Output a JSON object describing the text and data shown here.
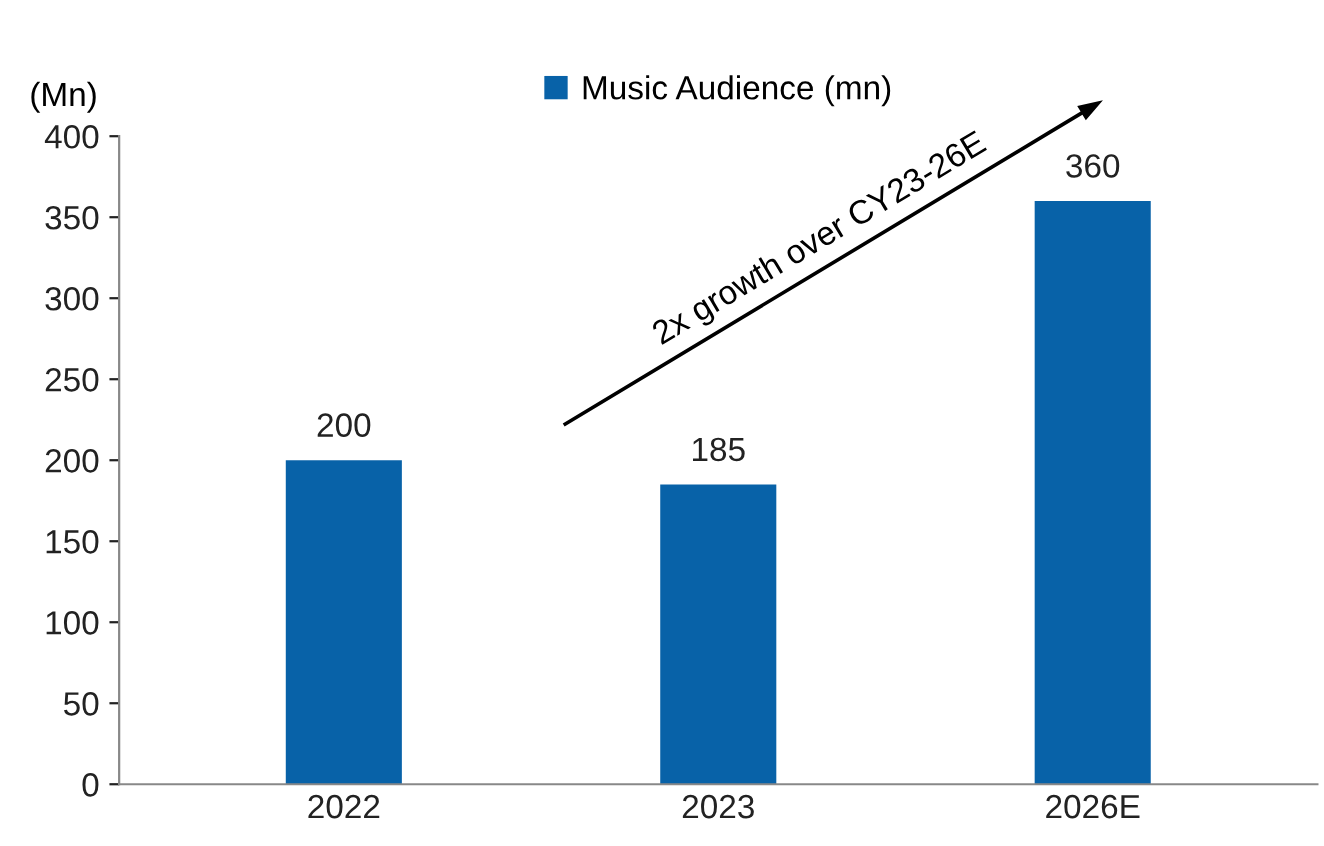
{
  "chart_data": {
    "type": "bar",
    "ylabel": "(Mn)",
    "categories": [
      "2022",
      "2023",
      "2026E"
    ],
    "series": [
      {
        "name": "Music Audience (mn)",
        "color": "#0862a8",
        "values": [
          200,
          185,
          360
        ]
      }
    ],
    "ylim": [
      0,
      400
    ],
    "yticks": [
      0,
      50,
      100,
      150,
      200,
      250,
      300,
      350,
      400
    ],
    "data_labels": true,
    "legend": "top",
    "grid": false,
    "annotations": [
      "2x growth over CY23-26E"
    ]
  }
}
